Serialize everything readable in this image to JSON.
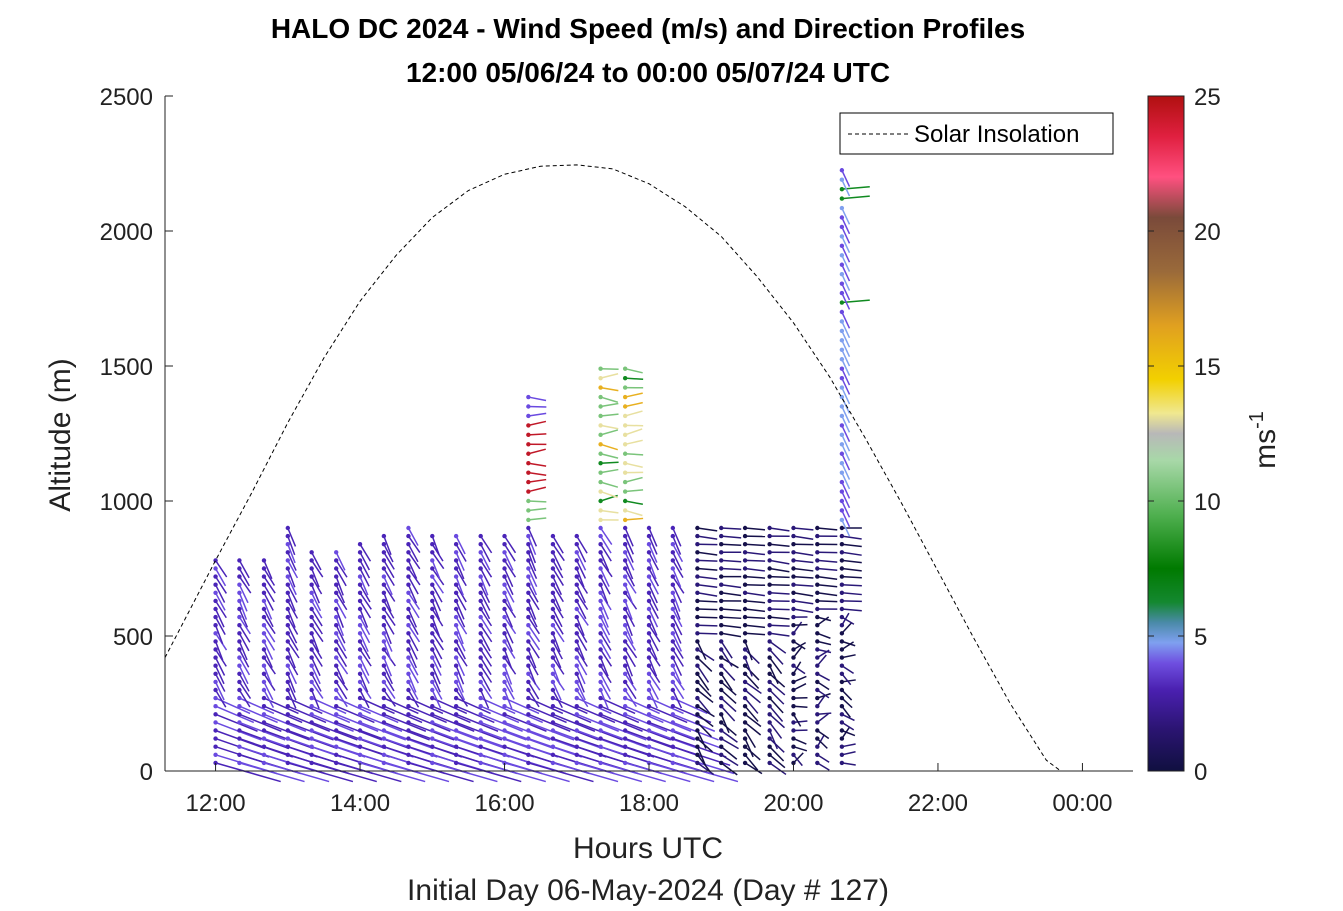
{
  "chart_data": {
    "type": "wind-barb-profile",
    "title_line1": "HALO DC 2024 - Wind Speed (m/s) and Direction Profiles",
    "title_line2": "12:00 05/06/24 to 00:00 05/07/24  UTC",
    "xlabel": "Hours UTC",
    "subtitle": "Initial Day 06-May-2024 (Day # 127)",
    "ylabel": "Altitude (m)",
    "colorbar_label": "ms",
    "colorbar_label_exp": "-1",
    "xlim": [
      11.3,
      24.7
    ],
    "ylim": [
      0,
      2500
    ],
    "x_ticks": [
      12,
      14,
      16,
      18,
      20,
      22,
      24
    ],
    "x_tick_labels": [
      "12:00",
      "14:00",
      "16:00",
      "18:00",
      "20:00",
      "22:00",
      "00:00"
    ],
    "y_ticks": [
      0,
      500,
      1000,
      1500,
      2000,
      2500
    ],
    "y_tick_labels": [
      "0",
      "500",
      "1000",
      "1500",
      "2000",
      "2500"
    ],
    "colorbar_ticks": [
      0,
      5,
      10,
      15,
      20,
      25
    ],
    "colorbar_tick_labels": [
      "0",
      "5",
      "10",
      "15",
      "20",
      "25"
    ],
    "colorbar_range": [
      0,
      25
    ],
    "legend": {
      "label": "Solar Insolation",
      "placement": "top-right",
      "style": "dashed"
    },
    "solar_insolation": {
      "x": [
        11.3,
        12.0,
        12.5,
        13.0,
        13.5,
        14.0,
        14.5,
        15.0,
        15.5,
        16.0,
        16.5,
        17.0,
        17.5,
        18.0,
        18.5,
        19.0,
        19.5,
        20.0,
        20.5,
        21.0,
        21.5,
        22.0,
        22.5,
        23.0,
        23.5,
        23.7,
        24.0,
        24.7
      ],
      "y": [
        420,
        780,
        1030,
        1290,
        1530,
        1740,
        1910,
        2050,
        2150,
        2210,
        2240,
        2245,
        2230,
        2175,
        2090,
        1980,
        1830,
        1660,
        1460,
        1230,
        990,
        740,
        490,
        250,
        40,
        0,
        0,
        0
      ]
    },
    "profile_times": [
      12.0,
      12.33,
      12.67,
      13.0,
      13.33,
      13.67,
      14.0,
      14.33,
      14.67,
      15.0,
      15.33,
      15.67,
      16.0,
      16.33,
      16.67,
      17.0,
      17.33,
      17.67,
      18.0,
      18.33,
      18.67,
      19.0,
      19.33,
      19.67,
      20.0,
      20.33,
      20.67
    ],
    "profile_tops": [
      790,
      790,
      790,
      900,
      820,
      830,
      850,
      870,
      900,
      880,
      890,
      880,
      880,
      1410,
      880,
      890,
      1500,
      1500,
      900,
      900,
      900,
      900,
      900,
      900,
      900,
      900,
      2230
    ],
    "series_notes": "wind barbs colored by speed (m/s)"
  }
}
